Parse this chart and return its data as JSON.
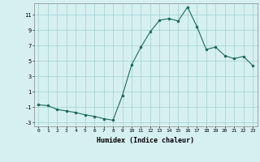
{
  "x": [
    0,
    1,
    2,
    3,
    4,
    5,
    6,
    7,
    8,
    9,
    10,
    11,
    12,
    13,
    14,
    15,
    16,
    17,
    18,
    19,
    20,
    21,
    22,
    23
  ],
  "y": [
    -0.7,
    -0.8,
    -1.3,
    -1.5,
    -1.7,
    -2.0,
    -2.2,
    -2.5,
    -2.7,
    0.5,
    4.5,
    6.8,
    8.8,
    10.3,
    10.5,
    10.2,
    12.0,
    9.5,
    6.5,
    6.8,
    5.7,
    5.3,
    5.6,
    4.4
  ],
  "xlabel": "Humidex (Indice chaleur)",
  "bg_color": "#d6f0f0",
  "grid_color": "#a0d0d0",
  "line_color": "#1a6b5a",
  "marker_color": "#1a6b5a",
  "yticks": [
    -3,
    -1,
    1,
    3,
    5,
    7,
    9,
    11
  ],
  "xticks": [
    0,
    1,
    2,
    3,
    4,
    5,
    6,
    7,
    8,
    9,
    10,
    11,
    12,
    13,
    14,
    15,
    16,
    17,
    18,
    19,
    20,
    21,
    22,
    23
  ],
  "ylim": [
    -3.5,
    12.5
  ],
  "xlim": [
    -0.5,
    23.5
  ]
}
